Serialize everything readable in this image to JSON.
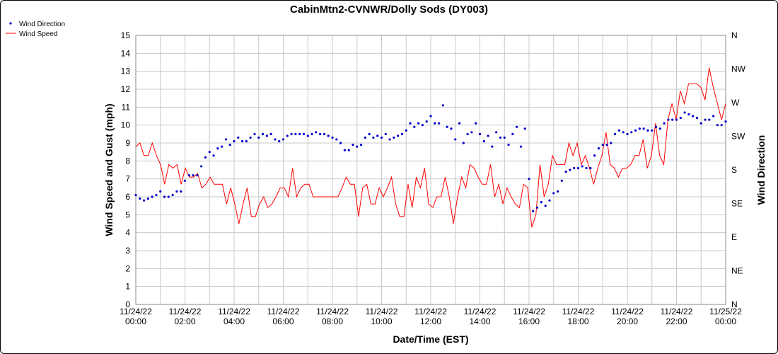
{
  "chart_data": {
    "type": "line",
    "title": "CabinMtn2-CVNWR/Dolly Sods (DY003)",
    "xlabel": "Date/Time (EST)",
    "ylabel": "Wind Speed and Gust (mph)",
    "y2label": "Wind Direction",
    "ylim": [
      0,
      15
    ],
    "yticks": [
      "0",
      "1",
      "2",
      "3",
      "4",
      "5",
      "6",
      "7",
      "8",
      "9",
      "10",
      "11",
      "12",
      "13",
      "14",
      "15"
    ],
    "y2ticks": [
      "N",
      "NE",
      "E",
      "SE",
      "S",
      "SW",
      "W",
      "NW",
      "N"
    ],
    "xlim_hours": [
      0,
      24
    ],
    "xticks": [
      {
        "date": "11/24/22",
        "time": "00:00"
      },
      {
        "date": "11/24/22",
        "time": "02:00"
      },
      {
        "date": "11/24/22",
        "time": "04:00"
      },
      {
        "date": "11/24/22",
        "time": "06:00"
      },
      {
        "date": "11/24/22",
        "time": "08:00"
      },
      {
        "date": "11/24/22",
        "time": "10:00"
      },
      {
        "date": "11/24/22",
        "time": "12:00"
      },
      {
        "date": "11/24/22",
        "time": "14:00"
      },
      {
        "date": "11/24/22",
        "time": "16:00"
      },
      {
        "date": "11/24/22",
        "time": "18:00"
      },
      {
        "date": "11/24/22",
        "time": "20:00"
      },
      {
        "date": "11/24/22",
        "time": "22:00"
      },
      {
        "date": "11/25/22",
        "time": "00:00"
      }
    ],
    "grid": true,
    "legend_position": "top-left",
    "series": [
      {
        "name": "Wind Speed",
        "color": "#ff0000",
        "style": "line",
        "axis": "left",
        "values": [
          8.8,
          9.0,
          8.3,
          8.3,
          9.0,
          8.3,
          7.8,
          6.7,
          7.8,
          7.6,
          7.8,
          6.7,
          7.6,
          7.1,
          7.1,
          7.3,
          6.5,
          6.7,
          7.1,
          6.7,
          6.7,
          6.7,
          5.6,
          6.5,
          5.6,
          4.5,
          5.6,
          6.5,
          4.9,
          4.9,
          5.6,
          6.0,
          5.4,
          5.6,
          6.0,
          6.5,
          6.5,
          6.0,
          7.6,
          6.0,
          6.5,
          6.7,
          6.7,
          6.0,
          6.0,
          6.0,
          6.0,
          6.0,
          6.0,
          6.0,
          6.5,
          7.1,
          6.7,
          6.7,
          4.9,
          6.5,
          6.7,
          5.6,
          5.6,
          6.5,
          6.0,
          6.5,
          7.1,
          5.6,
          4.9,
          4.9,
          6.7,
          5.4,
          7.1,
          6.5,
          7.6,
          5.6,
          5.4,
          6.0,
          6.0,
          7.1,
          6.0,
          4.5,
          6.0,
          7.1,
          6.5,
          7.8,
          7.6,
          7.1,
          6.7,
          6.7,
          7.8,
          6.0,
          6.7,
          5.6,
          6.5,
          6.0,
          5.6,
          5.4,
          6.7,
          6.5,
          4.3,
          5.0,
          7.8,
          6.0,
          6.7,
          8.3,
          7.8,
          7.8,
          7.8,
          9.0,
          8.3,
          9.0,
          7.8,
          8.3,
          7.6,
          6.7,
          7.6,
          8.3,
          9.6,
          7.8,
          7.6,
          7.1,
          7.6,
          7.6,
          7.8,
          8.3,
          8.3,
          9.2,
          7.6,
          8.3,
          10.1,
          8.3,
          7.8,
          10.3,
          11.2,
          10.3,
          11.9,
          11.2,
          12.3,
          12.3,
          12.3,
          12.1,
          11.4,
          13.2,
          12.1,
          11.2,
          10.3,
          11.2
        ]
      },
      {
        "name": "Wind Direction",
        "color": "#0000cc",
        "style": "markers",
        "axis": "right",
        "values": [
          6.1,
          5.9,
          5.8,
          5.9,
          6.0,
          6.1,
          6.3,
          6.0,
          6.0,
          6.1,
          6.3,
          6.3,
          6.9,
          7.2,
          7.2,
          7.2,
          7.7,
          8.2,
          8.5,
          8.3,
          8.7,
          8.8,
          9.2,
          8.9,
          9.1,
          9.3,
          9.1,
          9.1,
          9.3,
          9.5,
          9.3,
          9.5,
          9.4,
          9.5,
          9.2,
          9.1,
          9.2,
          9.4,
          9.5,
          9.5,
          9.5,
          9.5,
          9.4,
          9.5,
          9.6,
          9.5,
          9.5,
          9.4,
          9.3,
          9.2,
          9.0,
          8.6,
          8.6,
          8.9,
          8.8,
          8.9,
          9.3,
          9.5,
          9.3,
          9.4,
          9.3,
          9.5,
          9.2,
          9.3,
          9.4,
          9.5,
          9.7,
          10.1,
          9.9,
          10.1,
          10.0,
          10.2,
          10.5,
          10.1,
          10.1,
          11.1,
          9.9,
          9.8,
          9.2,
          10.1,
          9.0,
          9.5,
          9.6,
          10.1,
          9.5,
          9.1,
          9.4,
          8.8,
          9.6,
          9.3,
          9.3,
          8.9,
          9.5,
          9.9,
          8.8,
          9.8,
          7.0,
          5.2,
          5.4,
          5.7,
          5.5,
          5.8,
          6.2,
          6.3,
          6.9,
          7.4,
          7.5,
          7.6,
          7.6,
          7.7,
          7.6,
          7.6,
          8.3,
          8.7,
          8.9,
          8.9,
          9.0,
          9.5,
          9.7,
          9.6,
          9.5,
          9.6,
          9.7,
          9.8,
          9.8,
          9.7,
          9.7,
          9.9,
          9.8,
          10.1,
          10.3,
          10.3,
          10.3,
          10.4,
          10.7,
          10.6,
          10.5,
          10.4,
          10.1,
          10.3,
          10.3,
          10.5,
          10.0,
          10.0,
          10.2
        ]
      }
    ]
  }
}
